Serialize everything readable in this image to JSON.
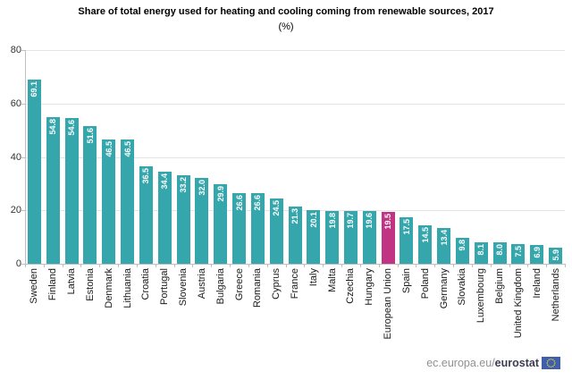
{
  "title": "Share of total energy used for heating and cooling coming from renewable sources, 2017",
  "subtitle": "(%)",
  "chart_data": {
    "type": "bar",
    "title": "Share of total energy used for heating and cooling coming from renewable sources, 2017",
    "subtitle": "(%)",
    "xlabel": "",
    "ylabel": "",
    "ylim": [
      0,
      80
    ],
    "yticks": [
      0,
      20,
      40,
      60,
      80
    ],
    "grid": true,
    "legend": "none",
    "categories": [
      "Sweden",
      "Finland",
      "Latvia",
      "Estonia",
      "Denmark",
      "Lithuania",
      "Croatia",
      "Portugal",
      "Slovenia",
      "Austria",
      "Bulgaria",
      "Greece",
      "Romania",
      "Cyprus",
      "France",
      "Italy",
      "Malta",
      "Czechia",
      "Hungary",
      "European Union",
      "Spain",
      "Poland",
      "Germany",
      "Slovakia",
      "Luxembourg",
      "Belgium",
      "United Kingdom",
      "Ireland",
      "Netherlands"
    ],
    "values": [
      69.1,
      54.8,
      54.6,
      51.6,
      46.5,
      46.5,
      36.5,
      34.4,
      33.2,
      32.0,
      29.9,
      26.6,
      26.6,
      24.5,
      21.3,
      20.1,
      19.8,
      19.7,
      19.6,
      19.5,
      17.5,
      14.5,
      13.4,
      9.8,
      8.1,
      8.0,
      7.5,
      6.9,
      5.9
    ],
    "highlight_category": "European Union"
  },
  "colors": {
    "bar": "#35a7ac",
    "highlight_bar": "#c13383",
    "gridline": "#e5e5e5",
    "axis": "#bfbfbf",
    "value_label": "#ffffff",
    "tick_label": "#333333",
    "eu_logo_blue": "#3e5fae",
    "eu_logo_stars": "#f7d117"
  },
  "footer": {
    "url_prefix": "ec.europa.eu/",
    "url_bold": "eurostat",
    "logo": "eu-flag"
  }
}
